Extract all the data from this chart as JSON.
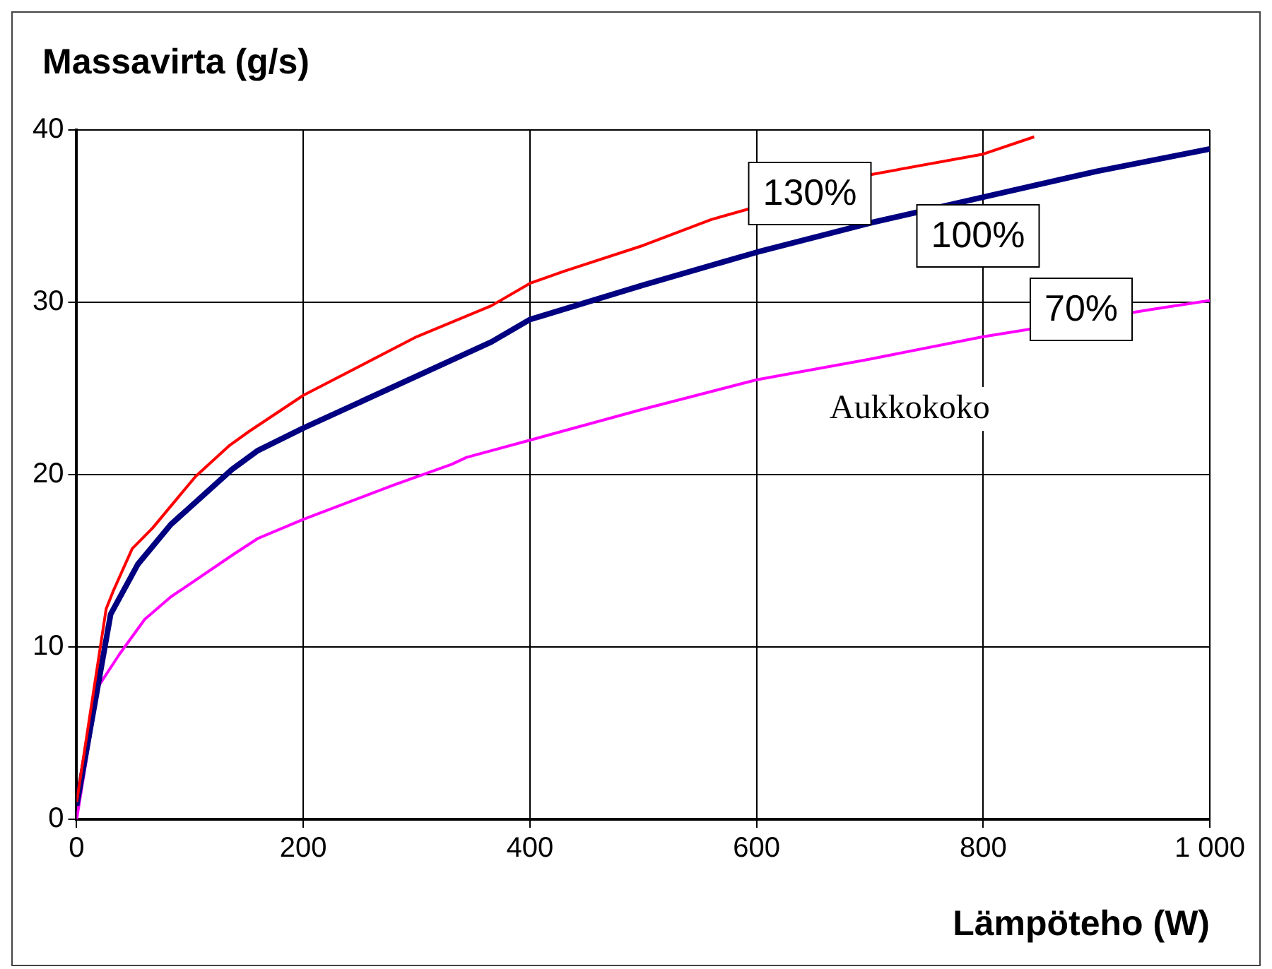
{
  "chart_data": {
    "type": "line",
    "ylabel": "Massavirta (g/s)",
    "xlabel": "Lämpöteho (W)",
    "legend_title": "Aukkokoko",
    "xlim": [
      0,
      1000
    ],
    "xticks": [
      0,
      200,
      400,
      600,
      800,
      {
        "value": 1000,
        "label": "1 000"
      }
    ],
    "ylim": [
      0,
      40
    ],
    "yticks": [
      0,
      10,
      20,
      30,
      40
    ],
    "grid": true,
    "legend": false,
    "marker": "none",
    "line_style": "solid",
    "series": [
      {
        "name": "130%",
        "color": "#ff0000",
        "x": [
          0,
          26,
          32,
          49,
          67,
          105,
          135,
          152,
          200,
          300,
          366,
          400,
          430,
          500,
          560,
          700,
          800,
          845
        ],
        "values": [
          1,
          12.2,
          13.2,
          15.7,
          16.9,
          19.9,
          21.7,
          22.5,
          24.6,
          28,
          29.8,
          31.1,
          31.8,
          33.3,
          34.8,
          37.4,
          38.6,
          39.6
        ]
      },
      {
        "name": "100%",
        "color": "#000080",
        "x": [
          0,
          30,
          54,
          83,
          137,
          160,
          200,
          366,
          400,
          500,
          600,
          700,
          800,
          900,
          1000
        ],
        "values": [
          0.8,
          11.9,
          14.8,
          17.1,
          20.3,
          21.4,
          22.7,
          27.7,
          29,
          31,
          32.9,
          34.6,
          36.1,
          37.6,
          38.9
        ]
      },
      {
        "name": "70%",
        "color": "#ff00ff",
        "x": [
          0,
          19,
          38,
          60,
          83,
          139,
          160,
          200,
          280,
          331,
          344,
          400,
          500,
          600,
          700,
          800,
          950,
          1000
        ],
        "values": [
          0,
          7.7,
          9.6,
          11.6,
          12.9,
          15.4,
          16.3,
          17.4,
          19.4,
          20.6,
          21,
          22,
          23.8,
          25.5,
          26.7,
          28,
          29.6,
          30.1
        ]
      }
    ]
  }
}
